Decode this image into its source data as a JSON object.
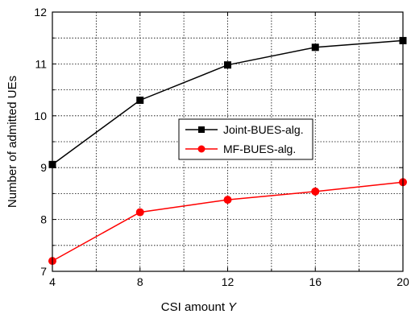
{
  "chart_data": {
    "type": "line",
    "xlabel": "CSI amount",
    "xlabel_symbol": "Y",
    "ylabel": "Number of admitted UEs",
    "x": [
      4,
      8,
      12,
      16,
      20
    ],
    "xlim": [
      4,
      20
    ],
    "ylim": [
      7,
      12
    ],
    "xticks": [
      "4",
      "8",
      "12",
      "16",
      "20"
    ],
    "yticks": [
      "7",
      "8",
      "9",
      "10",
      "11",
      "12"
    ],
    "grid": "dotted",
    "legend_position": "center-right",
    "series": [
      {
        "name": "Joint-BUES-alg.",
        "marker": "square",
        "color": "#000000",
        "values": [
          9.06,
          10.3,
          10.98,
          11.32,
          11.45
        ]
      },
      {
        "name": "MF-BUES-alg.",
        "marker": "circle",
        "color": "#ff0000",
        "values": [
          7.2,
          8.14,
          8.38,
          8.54,
          8.72
        ]
      }
    ]
  }
}
